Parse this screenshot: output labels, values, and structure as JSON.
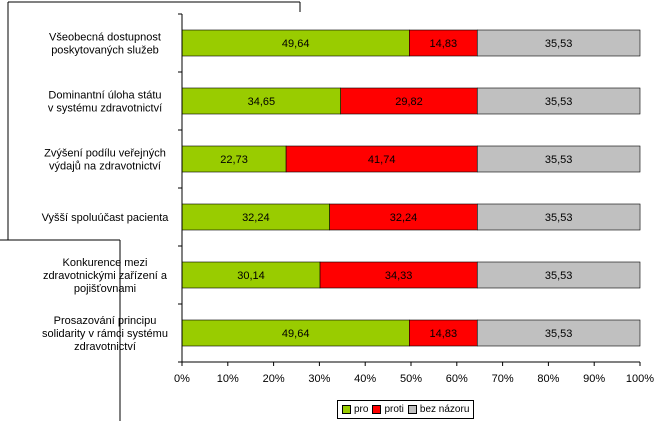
{
  "chart_data": {
    "type": "bar",
    "orientation": "horizontal",
    "stacked": "percent",
    "categories": [
      [
        "Všeobecná dostupnost",
        "poskytovaných služeb"
      ],
      [
        "Dominantní úloha státu",
        "v systému zdravotnictví"
      ],
      [
        "Zvýšení podílu veřejných",
        "výdajů na zdravotnictví"
      ],
      [
        "Vyšší spoluúčast pacienta"
      ],
      [
        "Konkurence mezi",
        "zdravotnickými zařízení a",
        "pojišťovnami"
      ],
      [
        "Prosazování principu",
        "solidarity v rámci systému",
        "zdravotnictví"
      ]
    ],
    "series": [
      {
        "name": "pro",
        "color": "#99cc00",
        "values": [
          49.64,
          34.65,
          22.73,
          32.24,
          30.14,
          49.64
        ]
      },
      {
        "name": "proti",
        "color": "#ff0000",
        "values": [
          14.83,
          29.82,
          41.74,
          32.24,
          34.33,
          14.83
        ]
      },
      {
        "name": "bez názoru",
        "color": "#c0c0c0",
        "values": [
          35.53,
          35.53,
          35.53,
          35.53,
          35.53,
          35.53
        ]
      }
    ],
    "data_labels": [
      [
        "49,64",
        "14,83",
        "35,53"
      ],
      [
        "34,65",
        "29,82",
        "35,53"
      ],
      [
        "22,73",
        "41,74",
        "35,53"
      ],
      [
        "32,24",
        "32,24",
        "35,53"
      ],
      [
        "30,14",
        "34,33",
        "35,53"
      ],
      [
        "49,64",
        "14,83",
        "35,53"
      ]
    ],
    "xlim": [
      0,
      100
    ],
    "xticks": [
      "0%",
      "10%",
      "20%",
      "30%",
      "40%",
      "50%",
      "60%",
      "70%",
      "80%",
      "90%",
      "100%"
    ],
    "grid": false,
    "legend": "bottom"
  }
}
